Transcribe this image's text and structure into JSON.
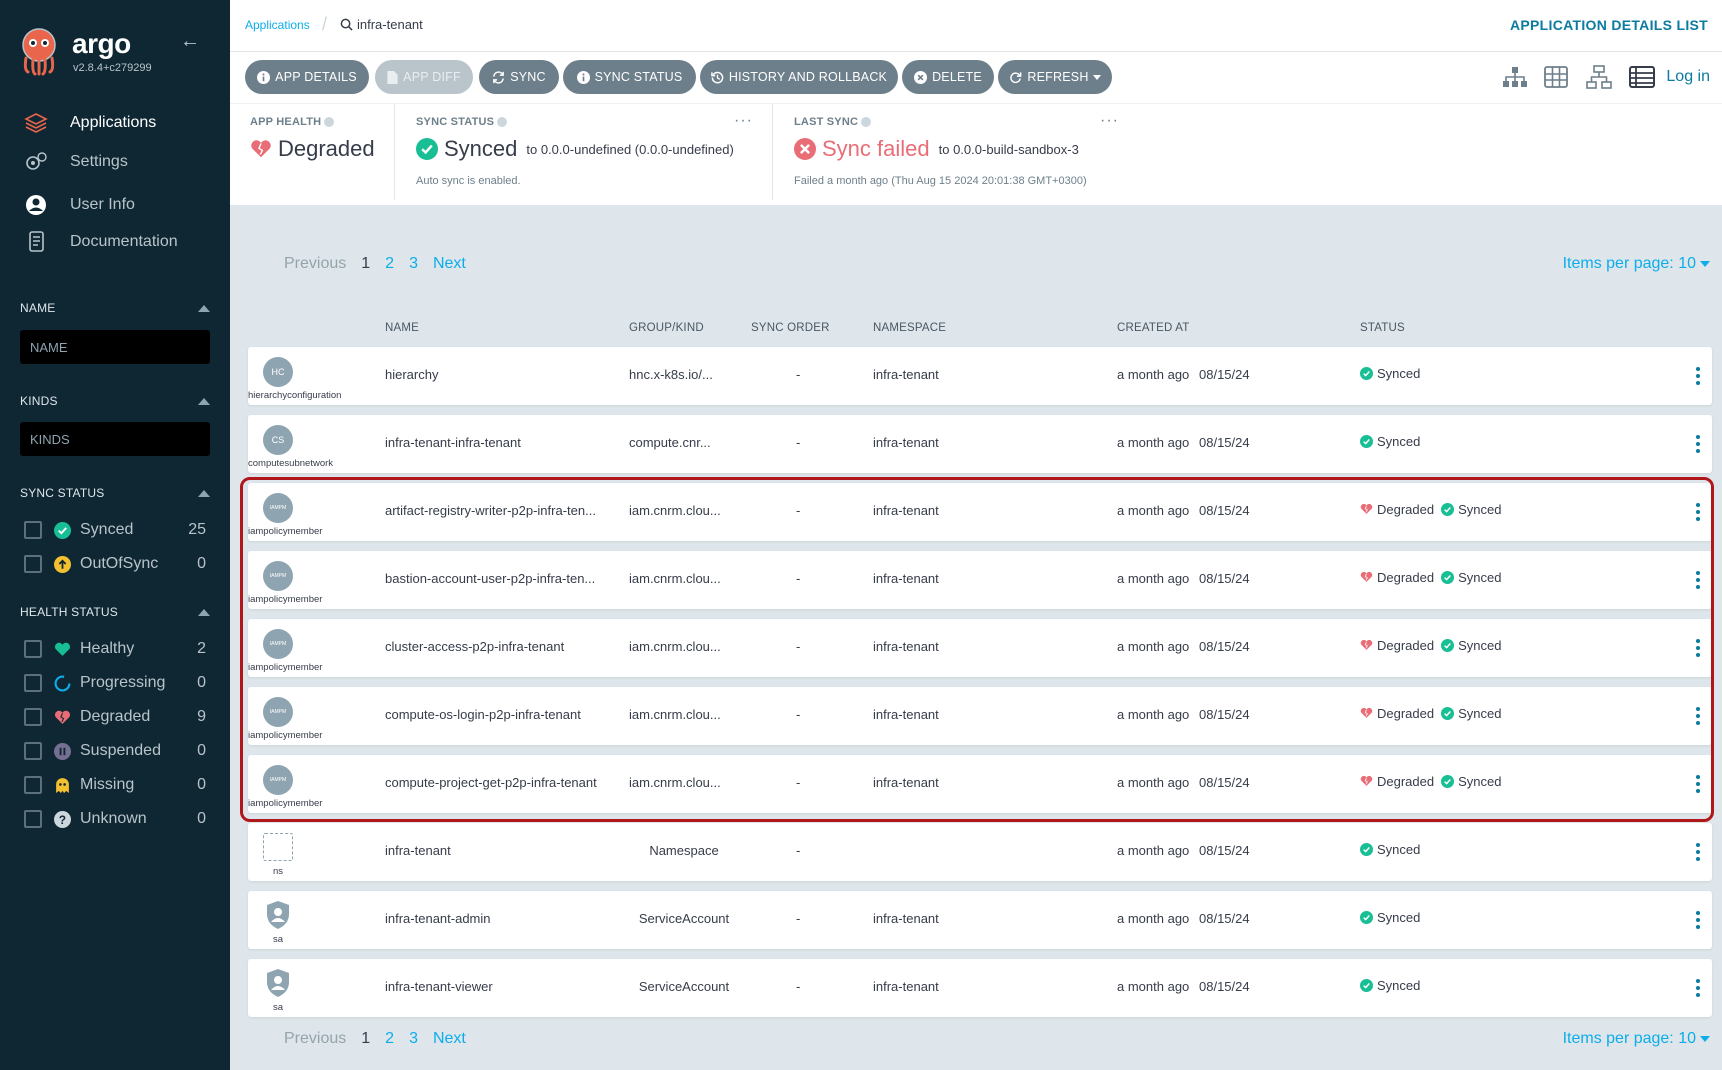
{
  "app": {
    "brand": "argo",
    "version": "v2.8.4+c279299"
  },
  "nav": [
    {
      "label": "Applications",
      "icon": "stack-icon",
      "active": true
    },
    {
      "label": "Settings",
      "icon": "gears-icon",
      "active": false
    },
    {
      "label": "User Info",
      "icon": "user-circle-icon",
      "active": false
    },
    {
      "label": "Documentation",
      "icon": "docs-icon",
      "active": false
    }
  ],
  "filters": {
    "name": {
      "title": "NAME",
      "placeholder": "NAME"
    },
    "kinds": {
      "title": "KINDS",
      "placeholder": "KINDS"
    },
    "sync_status": {
      "title": "SYNC STATUS",
      "items": [
        {
          "label": "Synced",
          "count": "25",
          "icon": "check-circle-icon",
          "color": "#18be94"
        },
        {
          "label": "OutOfSync",
          "count": "0",
          "icon": "arrow-up-circle-icon",
          "color": "#f4c030"
        }
      ]
    },
    "health_status": {
      "title": "HEALTH STATUS",
      "items": [
        {
          "label": "Healthy",
          "count": "2",
          "icon": "heart-icon",
          "color": "#18be94"
        },
        {
          "label": "Progressing",
          "count": "0",
          "icon": "progress-ring-icon",
          "color": "#0dadea"
        },
        {
          "label": "Degraded",
          "count": "9",
          "icon": "broken-heart-icon",
          "color": "#e96d76"
        },
        {
          "label": "Suspended",
          "count": "0",
          "icon": "pause-circle-icon",
          "color": "#766f94"
        },
        {
          "label": "Missing",
          "count": "0",
          "icon": "ghost-icon",
          "color": "#f4c030"
        },
        {
          "label": "Unknown",
          "count": "0",
          "icon": "question-circle-icon",
          "color": "#ccd6dd"
        }
      ]
    }
  },
  "breadcrumb": {
    "parent": "Applications",
    "current": "infra-tenant"
  },
  "page_title": "APPLICATION DETAILS LIST",
  "toolbar": {
    "buttons": [
      {
        "label": "APP DETAILS",
        "icon": "info-icon",
        "disabled": false
      },
      {
        "label": "APP DIFF",
        "icon": "file-icon",
        "disabled": true
      },
      {
        "label": "SYNC",
        "icon": "sync-icon",
        "disabled": false
      },
      {
        "label": "SYNC STATUS",
        "icon": "info-icon",
        "disabled": false
      },
      {
        "label": "HISTORY AND ROLLBACK",
        "icon": "history-icon",
        "disabled": false
      },
      {
        "label": "DELETE",
        "icon": "x-circle-icon",
        "disabled": false
      },
      {
        "label": "REFRESH",
        "icon": "refresh-icon",
        "disabled": false
      }
    ],
    "logout": "Log in"
  },
  "status": {
    "app_health": {
      "label": "APP HEALTH",
      "value": "Degraded"
    },
    "sync_status": {
      "label": "SYNC STATUS",
      "value": "Synced",
      "revision": "to 0.0.0-undefined (0.0.0-undefined)",
      "sub": "Auto sync is enabled."
    },
    "last_sync": {
      "label": "LAST SYNC",
      "value": "Sync failed",
      "revision": "to 0.0.0-build-sandbox-3",
      "sub": "Failed a month ago (Thu Aug 15 2024 20:01:38 GMT+0300)"
    }
  },
  "pagination": {
    "prev": "Previous",
    "pages": [
      "1",
      "2",
      "3"
    ],
    "current": "1",
    "next": "Next",
    "items_per_page": "Items per page: 10"
  },
  "table": {
    "columns": [
      "NAME",
      "GROUP/KIND",
      "SYNC ORDER",
      "NAMESPACE",
      "CREATED AT",
      "STATUS"
    ],
    "rows": [
      {
        "kind_abbr": "HC",
        "kind": "hierarchyconfiguration",
        "icon": "circle",
        "name": "hierarchy",
        "group": "hnc.x-k8s.io/...",
        "order": "-",
        "namespace": "infra-tenant",
        "created": "a month ago",
        "date": "08/15/24",
        "health": "",
        "sync": "Synced"
      },
      {
        "kind_abbr": "CS",
        "kind": "computesubnetwork",
        "icon": "circle",
        "name": "infra-tenant-infra-tenant",
        "group": "compute.cnr...",
        "order": "-",
        "namespace": "infra-tenant",
        "created": "a month ago",
        "date": "08/15/24",
        "health": "",
        "sync": "Synced"
      },
      {
        "kind_abbr": "IAMPM",
        "kind": "iampolicymember",
        "icon": "circle",
        "name": "artifact-registry-writer-p2p-infra-ten...",
        "group": "iam.cnrm.clou...",
        "order": "-",
        "namespace": "infra-tenant",
        "created": "a month ago",
        "date": "08/15/24",
        "health": "Degraded",
        "sync": "Synced"
      },
      {
        "kind_abbr": "IAMPM",
        "kind": "iampolicymember",
        "icon": "circle",
        "name": "bastion-account-user-p2p-infra-ten...",
        "group": "iam.cnrm.clou...",
        "order": "-",
        "namespace": "infra-tenant",
        "created": "a month ago",
        "date": "08/15/24",
        "health": "Degraded",
        "sync": "Synced"
      },
      {
        "kind_abbr": "IAMPM",
        "kind": "iampolicymember",
        "icon": "circle",
        "name": "cluster-access-p2p-infra-tenant",
        "group": "iam.cnrm.clou...",
        "order": "-",
        "namespace": "infra-tenant",
        "created": "a month ago",
        "date": "08/15/24",
        "health": "Degraded",
        "sync": "Synced"
      },
      {
        "kind_abbr": "IAMPM",
        "kind": "iampolicymember",
        "icon": "circle",
        "name": "compute-os-login-p2p-infra-tenant",
        "group": "iam.cnrm.clou...",
        "order": "-",
        "namespace": "infra-tenant",
        "created": "a month ago",
        "date": "08/15/24",
        "health": "Degraded",
        "sync": "Synced"
      },
      {
        "kind_abbr": "IAMPM",
        "kind": "iampolicymember",
        "icon": "circle",
        "name": "compute-project-get-p2p-infra-tenant",
        "group": "iam.cnrm.clou...",
        "order": "-",
        "namespace": "infra-tenant",
        "created": "a month ago",
        "date": "08/15/24",
        "health": "Degraded",
        "sync": "Synced"
      },
      {
        "kind_abbr": "",
        "kind": "ns",
        "icon": "box",
        "name": "infra-tenant",
        "group": "Namespace",
        "order": "-",
        "namespace": "",
        "created": "a month ago",
        "date": "08/15/24",
        "health": "",
        "sync": "Synced"
      },
      {
        "kind_abbr": "",
        "kind": "sa",
        "icon": "shield",
        "name": "infra-tenant-admin",
        "group": "ServiceAccount",
        "order": "-",
        "namespace": "infra-tenant",
        "created": "a month ago",
        "date": "08/15/24",
        "health": "",
        "sync": "Synced"
      },
      {
        "kind_abbr": "",
        "kind": "sa",
        "icon": "shield",
        "name": "infra-tenant-viewer",
        "group": "ServiceAccount",
        "order": "-",
        "namespace": "infra-tenant",
        "created": "a month ago",
        "date": "08/15/24",
        "health": "",
        "sync": "Synced"
      }
    ]
  },
  "colors": {
    "sidebar": "#0f2733",
    "accent": "#0b7b9f",
    "link": "#0dadea",
    "synced": "#18be94",
    "degraded": "#e96d76",
    "highlight": "#b0171b"
  }
}
